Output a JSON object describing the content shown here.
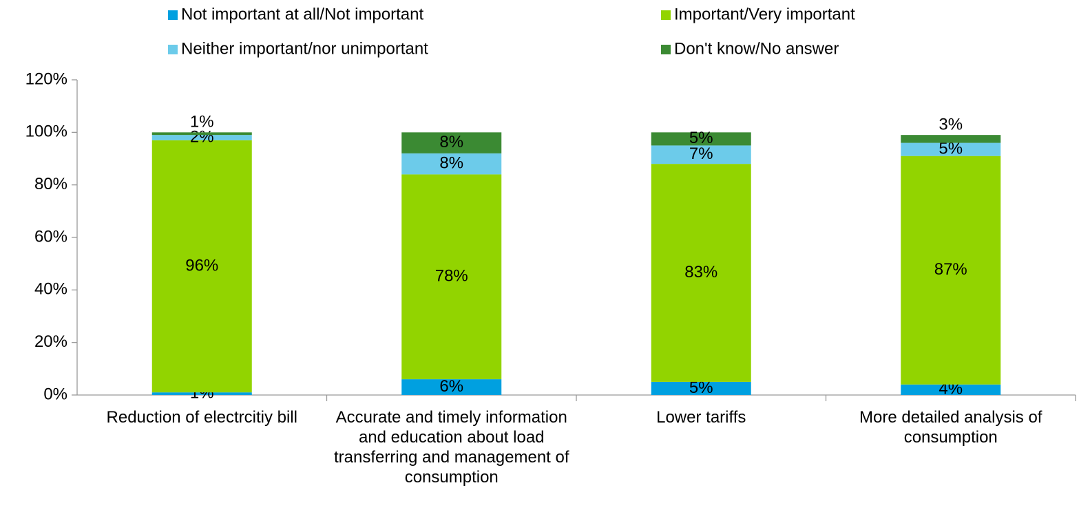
{
  "chart_data": {
    "type": "stacked_bar",
    "categories": [
      "Reduction of electrcitiy bill",
      "Accurate and timely information and education about load transferring and management of consumption",
      "Lower tariffs",
      "More detailed analysis of consumption"
    ],
    "series": [
      {
        "name": "Not important at all/Not important",
        "color": "#00a0e0",
        "values": [
          1,
          6,
          5,
          4
        ],
        "value_labels": [
          "1%",
          "6%",
          "5%",
          "4%"
        ]
      },
      {
        "name": "Important/Very important",
        "color": "#92d400",
        "values": [
          96,
          78,
          83,
          87
        ],
        "value_labels": [
          "96%",
          "78%",
          "83%",
          "87%"
        ]
      },
      {
        "name": "Neither important/nor unimportant",
        "color": "#6ccbea",
        "values": [
          2,
          8,
          7,
          5
        ],
        "value_labels": [
          "2%",
          "8%",
          "7%",
          "5%"
        ]
      },
      {
        "name": "Don't know/No answer",
        "color": "#3b8a33",
        "values": [
          1,
          8,
          5,
          3
        ],
        "value_labels": [
          "1%",
          "8%",
          "5%",
          "3%"
        ]
      }
    ],
    "ylim": [
      0,
      120
    ],
    "yticks": [
      {
        "value": 0,
        "label": "0%"
      },
      {
        "value": 20,
        "label": "20%"
      },
      {
        "value": 40,
        "label": "40%"
      },
      {
        "value": 60,
        "label": "60%"
      },
      {
        "value": 80,
        "label": "80%"
      },
      {
        "value": 100,
        "label": "100%"
      },
      {
        "value": 120,
        "label": "120%"
      }
    ],
    "grid": false
  }
}
